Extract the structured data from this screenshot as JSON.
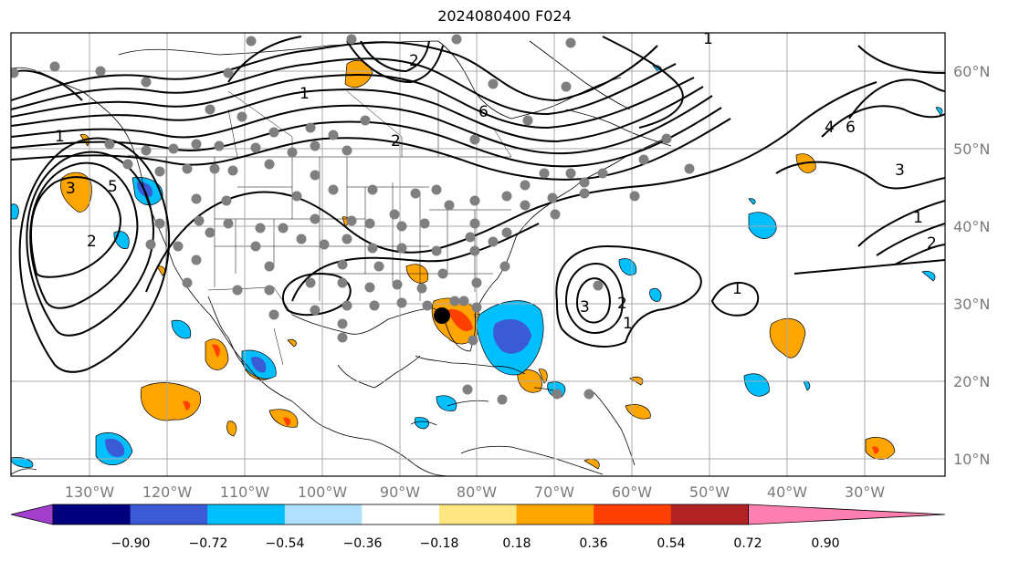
{
  "title": "2024080400 F024",
  "lon_labels": [
    "130°W",
    "120°W",
    "110°W",
    "100°W",
    "90°W",
    "80°W",
    "70°W",
    "60°W",
    "50°W",
    "40°W",
    "30°W"
  ],
  "lat_labels": [
    "60°N",
    "50°N",
    "40°N",
    "30°N",
    "20°N",
    "10°N"
  ],
  "contour_labels": [
    "1",
    "2",
    "3",
    "5",
    "6",
    "1",
    "2",
    "1",
    "3",
    "1",
    "2",
    "1",
    "2",
    "3",
    "4",
    "6",
    "1",
    "2"
  ],
  "colorbar": {
    "ticks": [
      "−0.90",
      "−0.72",
      "−0.54",
      "−0.36",
      "−0.18",
      "0.18",
      "0.36",
      "0.54",
      "0.72",
      "0.90"
    ],
    "colors": [
      "#a23fcf",
      "#00007f",
      "#3b5bd6",
      "#00bfff",
      "#b0e0ff",
      "#ffffff",
      "#ffe680",
      "#ffa500",
      "#ff4000",
      "#b22222",
      "#ff7fb0"
    ]
  },
  "colors": {
    "grid": "#a9a9a9",
    "stations": "#7f7f7f",
    "marker": "#000000"
  }
}
